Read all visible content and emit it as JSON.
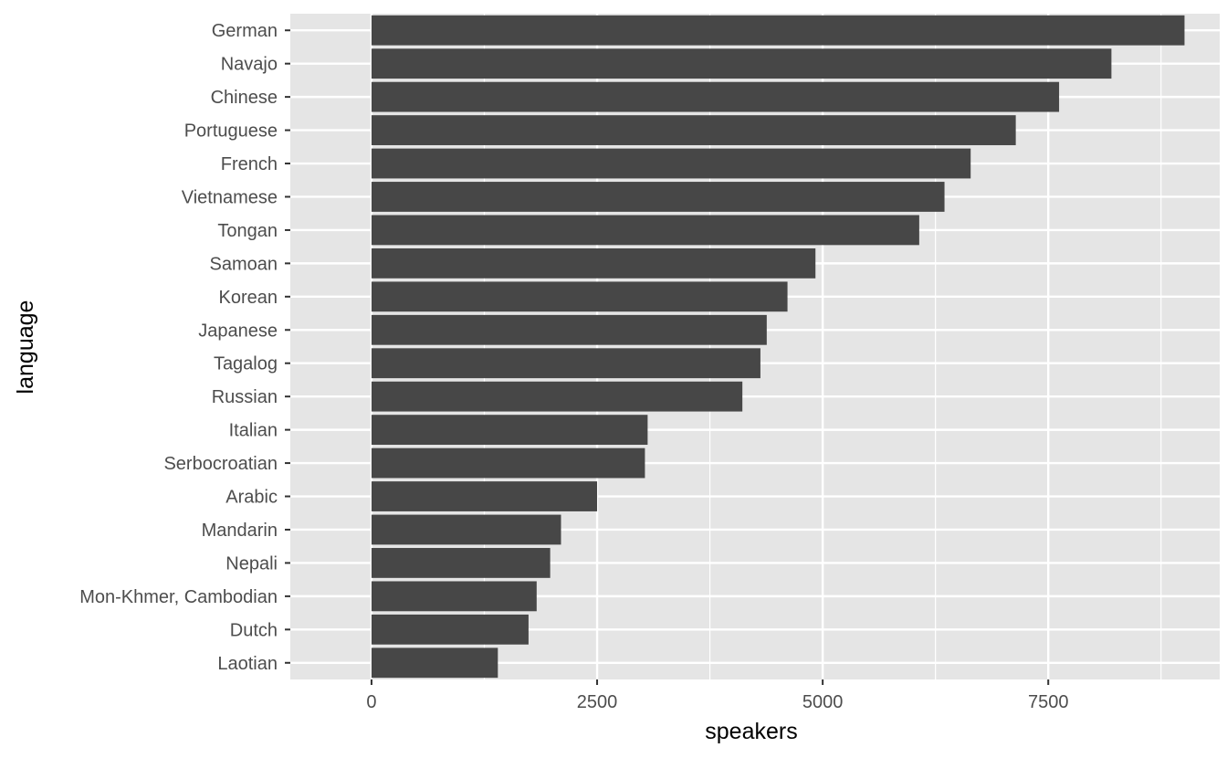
{
  "chart_data": {
    "type": "bar",
    "orientation": "horizontal",
    "title": "",
    "xlabel": "speakers",
    "ylabel": "language",
    "xlim": [
      -900,
      9400
    ],
    "x_ticks": [
      0,
      2500,
      5000,
      7500
    ],
    "x_tick_labels": [
      "0",
      "2500",
      "5000",
      "7500"
    ],
    "grid": true,
    "categories": [
      "German",
      "Navajo",
      "Chinese",
      "Portuguese",
      "French",
      "Vietnamese",
      "Tongan",
      "Samoan",
      "Korean",
      "Japanese",
      "Tagalog",
      "Russian",
      "Italian",
      "Serbocroatian",
      "Arabic",
      "Mandarin",
      "Nepali",
      "Mon-Khmer, Cambodian",
      "Dutch",
      "Laotian"
    ],
    "values": [
      9010,
      8200,
      7620,
      7140,
      6640,
      6350,
      6070,
      4920,
      4610,
      4380,
      4310,
      4110,
      3060,
      3030,
      2500,
      2100,
      1980,
      1830,
      1740,
      1400
    ],
    "colors": {
      "panel": "#e5e5e5",
      "grid": "#ffffff",
      "bar": "#474747",
      "tick": "#333333"
    }
  }
}
